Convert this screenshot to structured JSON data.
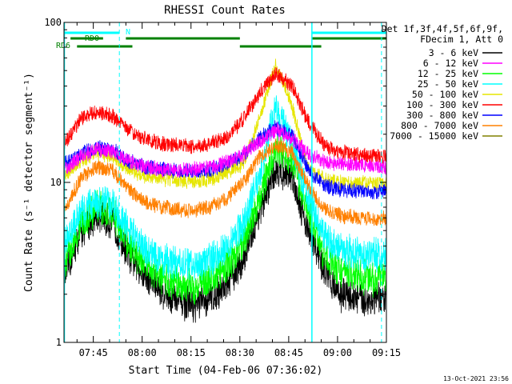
{
  "chart_data": {
    "type": "line",
    "title": "RHESSI Count Rates",
    "xlabel": "Start Time (04-Feb-06 07:36:02)",
    "ylabel": "Count Rate (s⁻¹ detector segment⁻¹)",
    "yscale": "log",
    "ylim": [
      1,
      100
    ],
    "xlim_minutes_after_0736": [
      0,
      99
    ],
    "x_ticks": [
      "07:45",
      "08:00",
      "08:15",
      "08:30",
      "08:45",
      "09:00",
      "09:15"
    ],
    "y_ticks": [
      "1",
      "10",
      "100"
    ],
    "legend_header": [
      "Det 1f,3f,4f,5f,6f,9f,",
      "FDecim 1, Att 0"
    ],
    "timestamp": "13-Oct-2021 23:56",
    "flags": [
      {
        "label": "N",
        "color": "#00ffff",
        "segments": [
          [
            0,
            17
          ],
          [
            76,
            99
          ]
        ]
      },
      {
        "label": "RD0",
        "color": "#008000",
        "segments": [
          [
            2,
            12
          ],
          [
            19,
            54
          ],
          [
            76,
            99
          ]
        ]
      },
      {
        "label": "RD6",
        "color": "#008000",
        "segments": [
          [
            4,
            21
          ],
          [
            54,
            79
          ]
        ]
      }
    ],
    "markers": {
      "solid": [
        0,
        76
      ],
      "dashed": [
        17,
        97.5
      ]
    },
    "x_minutes": [
      0,
      5,
      10,
      15,
      20,
      25,
      30,
      35,
      40,
      45,
      50,
      55,
      60,
      65,
      70,
      75,
      80,
      85,
      90,
      95,
      99
    ],
    "series": [
      {
        "name": "3 - 6 keV",
        "color": "#000000",
        "values": [
          2.5,
          4.8,
          6.3,
          5.5,
          3.5,
          2.6,
          2.1,
          1.8,
          1.7,
          1.9,
          2.3,
          3.3,
          6.5,
          12.0,
          11.0,
          5.0,
          2.8,
          2.0,
          1.9,
          1.8,
          1.9
        ]
      },
      {
        "name": "6 - 12 keV",
        "color": "#ff00ff",
        "values": [
          12.0,
          14.5,
          16.0,
          15.5,
          13.5,
          12.5,
          12.0,
          12.0,
          12.0,
          12.5,
          13.5,
          15.0,
          18.0,
          21.0,
          19.0,
          15.0,
          13.5,
          13.0,
          13.0,
          12.5,
          12.5
        ]
      },
      {
        "name": "12 - 25 keV",
        "color": "#00ff00",
        "values": [
          3.0,
          5.5,
          7.0,
          6.5,
          4.0,
          3.0,
          2.5,
          2.3,
          2.2,
          2.5,
          3.0,
          4.2,
          8.0,
          16.0,
          14.0,
          6.5,
          3.5,
          2.8,
          2.6,
          2.5,
          2.6
        ]
      },
      {
        "name": "25 - 50 keV",
        "color": "#00ffff",
        "values": [
          4.0,
          6.5,
          7.8,
          7.2,
          5.0,
          3.8,
          3.3,
          3.1,
          3.0,
          3.3,
          4.0,
          5.5,
          11.0,
          30.0,
          17.0,
          8.0,
          4.5,
          3.8,
          3.6,
          3.5,
          3.6
        ]
      },
      {
        "name": "50 - 100 keV",
        "color": "#e6e600",
        "values": [
          11.0,
          13.5,
          15.5,
          14.5,
          12.0,
          11.0,
          10.5,
          10.3,
          10.2,
          10.5,
          11.5,
          13.0,
          25.0,
          55.0,
          30.0,
          12.0,
          10.5,
          10.0,
          10.0,
          9.8,
          9.8
        ]
      },
      {
        "name": "100 - 300 keV",
        "color": "#ff0000",
        "values": [
          17.0,
          25.0,
          28.0,
          26.0,
          21.0,
          18.5,
          17.5,
          17.0,
          16.8,
          17.5,
          19.0,
          25.0,
          36.0,
          48.0,
          40.0,
          24.0,
          17.0,
          15.5,
          15.0,
          14.5,
          14.5
        ]
      },
      {
        "name": "300 - 800 keV",
        "color": "#0000ff",
        "values": [
          13.0,
          15.0,
          16.5,
          16.0,
          13.5,
          12.5,
          12.0,
          11.8,
          11.7,
          12.0,
          13.0,
          14.5,
          19.0,
          22.0,
          20.0,
          12.0,
          9.5,
          9.0,
          8.8,
          8.7,
          8.8
        ]
      },
      {
        "name": "800 - 7000 keV",
        "color": "#ff8000",
        "values": [
          6.5,
          10.5,
          12.5,
          11.8,
          9.0,
          7.5,
          7.0,
          6.8,
          6.7,
          7.0,
          8.0,
          10.0,
          14.5,
          17.0,
          15.5,
          9.5,
          6.8,
          6.2,
          6.0,
          5.9,
          6.0
        ]
      },
      {
        "name": "7000 - 15000 keV",
        "color": "#808000",
        "values": []
      }
    ]
  }
}
